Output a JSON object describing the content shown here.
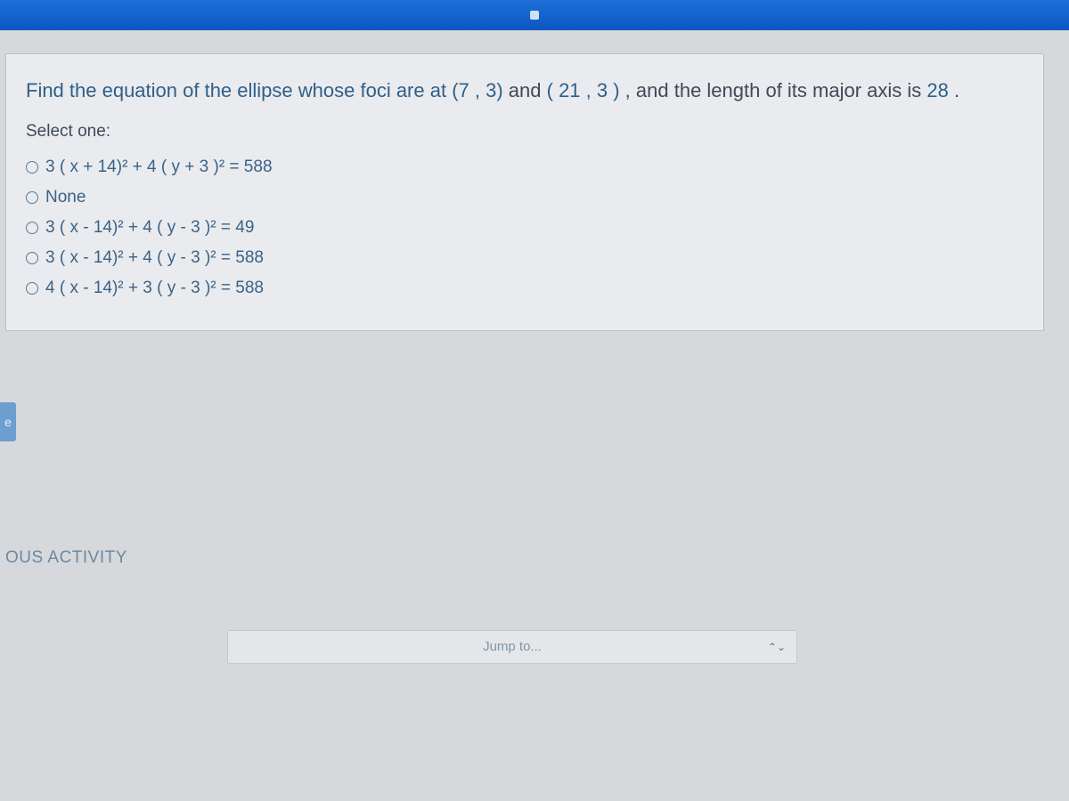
{
  "browser": {
    "accent_top": "#1f6fd8"
  },
  "question": {
    "prefix": "Find the equation of the ellipse whose foci are at ",
    "f1": "(7 , 3)",
    "mid": " and ",
    "f2": "( 21 , 3 )",
    "suffix1": ", and the length of its major axis is ",
    "major_axis": "28",
    "suffix2": " ."
  },
  "select_label": "Select one:",
  "options": [
    {
      "text": "3 ( x + 14)² + 4 ( y + 3 )² = 588"
    },
    {
      "text": "None"
    },
    {
      "text": "3 ( x - 14)² + 4 ( y - 3 )² = 49"
    },
    {
      "text": "3 ( x - 14)² + 4 ( y - 3 )² = 588"
    },
    {
      "text": "4 ( x - 14)² + 3 ( y - 3 )² = 588"
    }
  ],
  "flag_label": "e",
  "prev_activity": "OUS ACTIVITY",
  "jump": {
    "label": "Jump to..."
  },
  "colors": {
    "card_bg": "#e9ebef",
    "card_border": "#b7bcc7",
    "body_bg": "#d6d8dc",
    "link_text": "#2f5f86",
    "plain_text": "#3f4a56",
    "option_text": "#3b6285"
  }
}
